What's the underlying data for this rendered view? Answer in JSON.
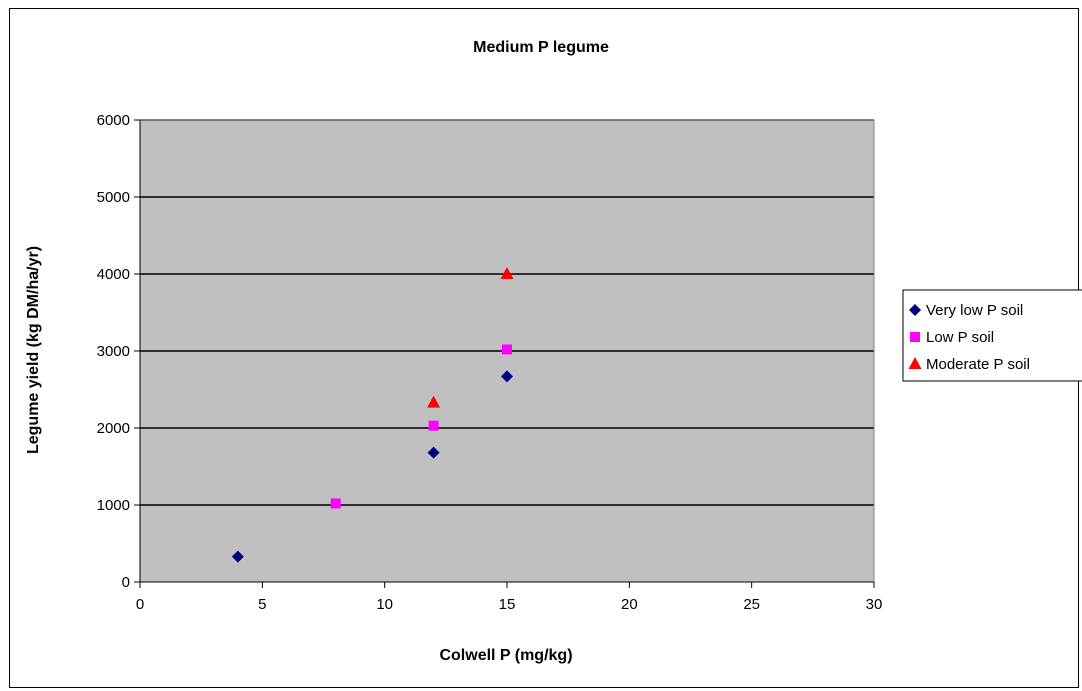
{
  "chart_data": {
    "type": "scatter",
    "title": "Medium P legume",
    "xlabel": "Colwell P (mg/kg)",
    "ylabel": "Legume yield (kg DM/ha/yr)",
    "xlim": [
      0,
      30
    ],
    "ylim": [
      0,
      6000
    ],
    "x_ticks": [
      0,
      5,
      10,
      15,
      20,
      25,
      30
    ],
    "y_ticks": [
      0,
      1000,
      2000,
      3000,
      4000,
      5000,
      6000
    ],
    "grid": "horizontal major",
    "plot_background": "#c0c0c0",
    "legend_position": "right",
    "series": [
      {
        "name": "Very low P soil",
        "marker": "diamond",
        "color": "#000080",
        "points": [
          [
            4,
            330
          ],
          [
            12,
            1680
          ],
          [
            15,
            2670
          ]
        ]
      },
      {
        "name": "Low P soil",
        "marker": "square",
        "color": "#ff00ff",
        "points": [
          [
            8,
            1020
          ],
          [
            12,
            2030
          ],
          [
            15,
            3020
          ]
        ]
      },
      {
        "name": "Moderate P soil",
        "marker": "triangle",
        "color": "#ff0000",
        "points": [
          [
            12,
            2330
          ],
          [
            15,
            4000
          ]
        ]
      }
    ]
  }
}
